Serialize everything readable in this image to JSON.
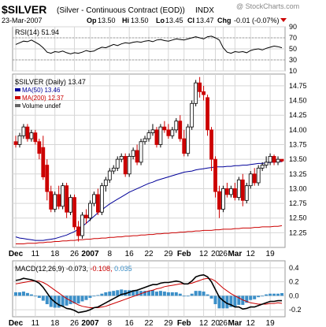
{
  "header": {
    "symbol": "$SILVER",
    "description": "(Silver - Continuous Contract (EOD))",
    "exchange": "INDX",
    "date": "23-Mar-2007",
    "open_label": "Op",
    "open": "13.50",
    "high_label": "Hi",
    "high": "13.50",
    "low_label": "Lo",
    "low": "13.45",
    "close_label": "Cl",
    "close": "13.47",
    "change_label": "Chg",
    "change": "-0.01 (-0.07%)",
    "watermark": "@ StockCharts.com"
  },
  "colors": {
    "up": "#ffffff",
    "down": "#cc0000",
    "ma50": "#000099",
    "ma200": "#cc0000",
    "rsi": "#000000",
    "macd": "#000000",
    "signal": "#cc0000",
    "hist": "#3b8fc8",
    "grid": "#d6d6d6",
    "triangle": "#cc0000"
  },
  "chart_data": [
    {
      "type": "line",
      "panel": "rsi",
      "label": "RSI(14) 51.94",
      "ylim": [
        10,
        90
      ],
      "ticks": [
        10,
        30,
        50,
        70,
        90
      ],
      "x": [
        0,
        1,
        2,
        3,
        4,
        5,
        6,
        7,
        8,
        9,
        10,
        11,
        12,
        13,
        14,
        15,
        16,
        17,
        18,
        19,
        20,
        21,
        22,
        23,
        24,
        25,
        26,
        27,
        28,
        29,
        30,
        31,
        32,
        33,
        34,
        35,
        36,
        37,
        38,
        39,
        40,
        41,
        42,
        43,
        44,
        45,
        46,
        47,
        48,
        49,
        50,
        51,
        52,
        53,
        54,
        55,
        56,
        57,
        58,
        59,
        60,
        61,
        62,
        63,
        64,
        65,
        66,
        67,
        68
      ],
      "values": [
        58,
        61,
        64,
        63,
        66,
        62,
        58,
        52,
        44,
        42,
        45,
        44,
        46,
        43,
        41,
        43,
        42,
        44,
        47,
        45,
        46,
        50,
        53,
        52,
        55,
        58,
        56,
        59,
        61,
        60,
        62,
        63,
        62,
        64,
        65,
        63,
        66,
        67,
        65,
        64,
        66,
        68,
        67,
        66,
        68,
        70,
        72,
        70,
        68,
        72,
        73,
        70,
        66,
        52,
        44,
        42,
        45,
        44,
        45,
        43,
        47,
        49,
        50,
        48,
        51,
        53,
        55,
        54,
        52
      ]
    },
    {
      "type": "candlestick",
      "panel": "price",
      "label": "$SILVER (Daily) 13.47",
      "ylim": [
        12.0,
        14.95
      ],
      "ticks": [
        12.25,
        12.5,
        12.75,
        13.0,
        13.25,
        13.5,
        13.75,
        14.0,
        14.25,
        14.5,
        14.75
      ],
      "candles": [
        [
          13.8,
          13.9,
          13.7,
          13.75
        ],
        [
          13.75,
          13.95,
          13.7,
          13.9
        ],
        [
          13.9,
          14.1,
          13.85,
          14.05
        ],
        [
          14.05,
          14.1,
          13.8,
          13.85
        ],
        [
          13.85,
          14.0,
          13.8,
          13.95
        ],
        [
          13.95,
          14.0,
          13.75,
          13.8
        ],
        [
          13.8,
          13.85,
          13.5,
          13.6
        ],
        [
          13.7,
          13.9,
          13.15,
          13.2
        ],
        [
          13.4,
          13.5,
          12.8,
          12.95
        ],
        [
          12.95,
          13.05,
          12.6,
          12.65
        ],
        [
          12.65,
          12.95,
          12.6,
          12.9
        ],
        [
          12.9,
          13.05,
          12.65,
          12.7
        ],
        [
          12.7,
          13.1,
          12.65,
          13.05
        ],
        [
          13.05,
          13.1,
          12.5,
          12.6
        ],
        [
          12.6,
          12.9,
          12.55,
          12.85
        ],
        [
          12.85,
          12.9,
          12.3,
          12.35
        ],
        [
          12.35,
          12.45,
          12.1,
          12.2
        ],
        [
          12.2,
          12.6,
          12.15,
          12.55
        ],
        [
          12.55,
          12.65,
          12.4,
          12.5
        ],
        [
          12.5,
          12.8,
          12.45,
          12.75
        ],
        [
          12.75,
          12.95,
          12.7,
          12.9
        ],
        [
          12.9,
          13.0,
          12.55,
          12.6
        ],
        [
          12.6,
          13.1,
          12.55,
          13.05
        ],
        [
          13.05,
          13.2,
          12.95,
          13.15
        ],
        [
          13.15,
          13.35,
          13.1,
          13.3
        ],
        [
          13.3,
          13.4,
          13.25,
          13.35
        ],
        [
          13.35,
          13.55,
          13.3,
          13.5
        ],
        [
          13.5,
          13.6,
          13.45,
          13.55
        ],
        [
          13.55,
          13.6,
          13.2,
          13.25
        ],
        [
          13.25,
          13.6,
          13.2,
          13.55
        ],
        [
          13.55,
          13.7,
          13.5,
          13.65
        ],
        [
          13.65,
          13.75,
          13.4,
          13.45
        ],
        [
          13.45,
          13.85,
          13.4,
          13.8
        ],
        [
          13.8,
          13.9,
          13.75,
          13.85
        ],
        [
          13.85,
          14.0,
          13.8,
          13.95
        ],
        [
          13.95,
          14.1,
          13.9,
          14.0
        ],
        [
          14.0,
          14.05,
          13.7,
          13.75
        ],
        [
          13.75,
          14.1,
          13.7,
          14.05
        ],
        [
          14.05,
          14.15,
          13.95,
          14.0
        ],
        [
          14.0,
          14.1,
          13.85,
          13.9
        ],
        [
          13.9,
          14.05,
          13.85,
          14.0
        ],
        [
          14.0,
          14.2,
          13.95,
          14.15
        ],
        [
          14.15,
          14.25,
          13.8,
          13.85
        ],
        [
          13.85,
          14.0,
          13.55,
          13.6
        ],
        [
          13.6,
          14.1,
          13.55,
          14.05
        ],
        [
          14.05,
          14.5,
          14.0,
          14.45
        ],
        [
          14.45,
          14.85,
          14.4,
          14.8
        ],
        [
          14.8,
          14.9,
          14.55,
          14.65
        ],
        [
          14.65,
          14.75,
          14.5,
          14.6
        ],
        [
          14.55,
          14.6,
          13.9,
          14.0
        ],
        [
          14.0,
          14.05,
          13.3,
          13.5
        ],
        [
          13.5,
          13.55,
          12.85,
          12.95
        ],
        [
          12.95,
          13.05,
          12.5,
          12.65
        ],
        [
          12.65,
          13.05,
          12.6,
          13.0
        ],
        [
          13.0,
          13.1,
          12.85,
          12.9
        ],
        [
          12.9,
          13.05,
          12.85,
          13.0
        ],
        [
          13.0,
          13.1,
          12.8,
          12.85
        ],
        [
          12.85,
          13.2,
          12.8,
          13.15
        ],
        [
          13.15,
          13.25,
          12.7,
          12.8
        ],
        [
          12.8,
          13.1,
          12.75,
          13.05
        ],
        [
          13.05,
          13.3,
          13.0,
          13.25
        ],
        [
          13.25,
          13.35,
          13.05,
          13.1
        ],
        [
          13.1,
          13.4,
          13.05,
          13.35
        ],
        [
          13.35,
          13.45,
          13.3,
          13.4
        ],
        [
          13.4,
          13.55,
          13.35,
          13.45
        ],
        [
          13.45,
          13.6,
          13.4,
          13.55
        ],
        [
          13.55,
          13.58,
          13.4,
          13.45
        ],
        [
          13.45,
          13.55,
          13.4,
          13.5
        ],
        [
          13.5,
          13.5,
          13.45,
          13.47
        ]
      ],
      "series": [
        {
          "name": "MA(50) 13.46",
          "values": [
            12.18,
            12.16,
            12.15,
            12.14,
            12.13,
            12.12,
            12.12,
            12.12,
            12.13,
            12.14,
            12.15,
            12.17,
            12.19,
            12.21,
            12.24,
            12.27,
            12.31,
            12.36,
            12.41,
            12.47,
            12.53,
            12.59,
            12.64,
            12.69,
            12.74,
            12.78,
            12.82,
            12.86,
            12.9,
            12.94,
            12.97,
            13.0,
            13.03,
            13.06,
            13.09,
            13.11,
            13.14,
            13.16,
            13.18,
            13.2,
            13.22,
            13.24,
            13.26,
            13.28,
            13.29,
            13.3,
            13.32,
            13.33,
            13.34,
            13.35,
            13.36,
            13.37,
            13.37,
            13.37,
            13.38,
            13.38,
            13.39,
            13.39,
            13.4,
            13.4,
            13.41,
            13.42,
            13.43,
            13.43,
            13.44,
            13.45,
            13.45,
            13.46,
            13.46
          ]
        },
        {
          "name": "MA(200) 12.37",
          "values": [
            12.06,
            12.06,
            12.06,
            12.07,
            12.07,
            12.07,
            12.08,
            12.08,
            12.09,
            12.09,
            12.1,
            12.1,
            12.11,
            12.11,
            12.12,
            12.12,
            12.13,
            12.13,
            12.14,
            12.14,
            12.15,
            12.15,
            12.16,
            12.16,
            12.17,
            12.17,
            12.18,
            12.18,
            12.19,
            12.19,
            12.2,
            12.2,
            12.21,
            12.21,
            12.22,
            12.22,
            12.23,
            12.23,
            12.24,
            12.24,
            12.25,
            12.25,
            12.26,
            12.26,
            12.27,
            12.27,
            12.28,
            12.28,
            12.29,
            12.29,
            12.29,
            12.3,
            12.3,
            12.31,
            12.31,
            12.31,
            12.32,
            12.32,
            12.33,
            12.33,
            12.33,
            12.34,
            12.34,
            12.35,
            12.35,
            12.35,
            12.36,
            12.36,
            12.37
          ]
        }
      ],
      "volume_label": "Volume undef"
    },
    {
      "type": "line",
      "panel": "macd",
      "label": "MACD(12,26,9) -0.073, -0.108, 0.035",
      "ylim": [
        -0.3,
        0.5
      ],
      "ticks": [
        -0.2,
        0.0,
        0.2,
        0.4
      ],
      "series": [
        {
          "name": "MACD",
          "values": [
            0.22,
            0.23,
            0.25,
            0.24,
            0.23,
            0.21,
            0.18,
            0.12,
            0.04,
            -0.04,
            -0.09,
            -0.13,
            -0.15,
            -0.18,
            -0.19,
            -0.21,
            -0.24,
            -0.23,
            -0.22,
            -0.2,
            -0.17,
            -0.16,
            -0.13,
            -0.1,
            -0.07,
            -0.04,
            -0.01,
            0.02,
            0.03,
            0.05,
            0.07,
            0.08,
            0.1,
            0.12,
            0.14,
            0.16,
            0.16,
            0.18,
            0.19,
            0.19,
            0.2,
            0.21,
            0.2,
            0.17,
            0.17,
            0.21,
            0.27,
            0.29,
            0.3,
            0.27,
            0.2,
            0.09,
            -0.02,
            -0.07,
            -0.11,
            -0.13,
            -0.16,
            -0.16,
            -0.19,
            -0.18,
            -0.16,
            -0.16,
            -0.14,
            -0.12,
            -0.1,
            -0.08,
            -0.08,
            -0.07,
            -0.07
          ]
        },
        {
          "name": "Signal",
          "values": [
            0.17,
            0.18,
            0.19,
            0.2,
            0.21,
            0.21,
            0.21,
            0.19,
            0.16,
            0.12,
            0.08,
            0.04,
            0.0,
            -0.04,
            -0.07,
            -0.1,
            -0.13,
            -0.15,
            -0.16,
            -0.17,
            -0.17,
            -0.17,
            -0.16,
            -0.15,
            -0.13,
            -0.11,
            -0.09,
            -0.07,
            -0.05,
            -0.03,
            -0.01,
            0.01,
            0.03,
            0.05,
            0.07,
            0.08,
            0.1,
            0.11,
            0.13,
            0.14,
            0.15,
            0.16,
            0.17,
            0.17,
            0.17,
            0.18,
            0.2,
            0.22,
            0.24,
            0.25,
            0.24,
            0.21,
            0.16,
            0.11,
            0.07,
            0.03,
            0.0,
            -0.03,
            -0.06,
            -0.08,
            -0.1,
            -0.11,
            -0.12,
            -0.12,
            -0.12,
            -0.11,
            -0.11,
            -0.1,
            -0.108
          ]
        }
      ]
    }
  ],
  "x_axis": {
    "labels": [
      "Dec",
      "11",
      "18",
      "26",
      "2007",
      "8",
      "16",
      "22",
      "29",
      "Feb",
      "12",
      "20",
      "26",
      "Mar",
      "12",
      "19"
    ],
    "label_index": [
      0,
      5,
      10,
      15,
      19,
      24,
      29,
      34,
      39,
      43,
      48,
      51,
      53,
      56,
      60,
      65
    ],
    "bold": [
      "Dec",
      "2007",
      "Feb",
      "Mar"
    ]
  }
}
